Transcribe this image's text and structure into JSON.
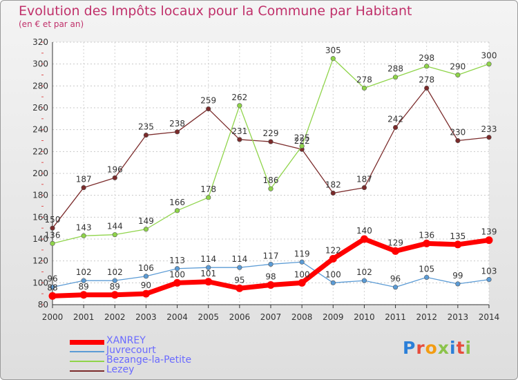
{
  "title": "Evolution des Impôts locaux pour la Commune par Habitant",
  "subtitle": "(en € et par an)",
  "logo": {
    "text": "Proxiti",
    "letters": [
      {
        "ch": "P",
        "color": "#2b7fd8"
      },
      {
        "ch": "r",
        "color": "#e74c3c"
      },
      {
        "ch": "o",
        "color": "#f39c12"
      },
      {
        "ch": "x",
        "color": "#8bc34a"
      },
      {
        "ch": "i",
        "color": "#2b7fd8"
      },
      {
        "ch": "t",
        "color": "#e74c3c"
      },
      {
        "ch": "i",
        "color": "#8bc34a"
      }
    ]
  },
  "chart_data": {
    "type": "line",
    "title": "Evolution des Impôts locaux pour la Commune par Habitant",
    "subtitle": "(en € et par an)",
    "x": [
      "2000",
      "2001",
      "2002",
      "2003",
      "2004",
      "2005",
      "2006",
      "2007",
      "2008",
      "2009",
      "2010",
      "2011",
      "2012",
      "2013",
      "2014"
    ],
    "ylim": [
      80,
      320
    ],
    "yticks": [
      80,
      100,
      120,
      140,
      160,
      180,
      200,
      220,
      240,
      260,
      280,
      300,
      320
    ],
    "grid": true,
    "legend": "bottom-left",
    "series": [
      {
        "name": "XANREY",
        "color": "#ff0000",
        "values": [
          88,
          89,
          89,
          90,
          100,
          101,
          95,
          98,
          100,
          122,
          140,
          129,
          136,
          135,
          139
        ]
      },
      {
        "name": "Juvrecourt",
        "color": "#5b9bd5",
        "values": [
          96,
          102,
          102,
          106,
          113,
          114,
          114,
          117,
          119,
          100,
          102,
          96,
          105,
          99,
          103
        ]
      },
      {
        "name": "Bezange-la-Petite",
        "color": "#8fd44a",
        "values": [
          136,
          143,
          144,
          149,
          166,
          178,
          262,
          186,
          225,
          305,
          278,
          288,
          298,
          290,
          300
        ]
      },
      {
        "name": "Lezey",
        "color": "#7b2b2b",
        "values": [
          150,
          187,
          196,
          235,
          238,
          259,
          231,
          229,
          222,
          182,
          187,
          242,
          278,
          230,
          233
        ]
      }
    ]
  }
}
